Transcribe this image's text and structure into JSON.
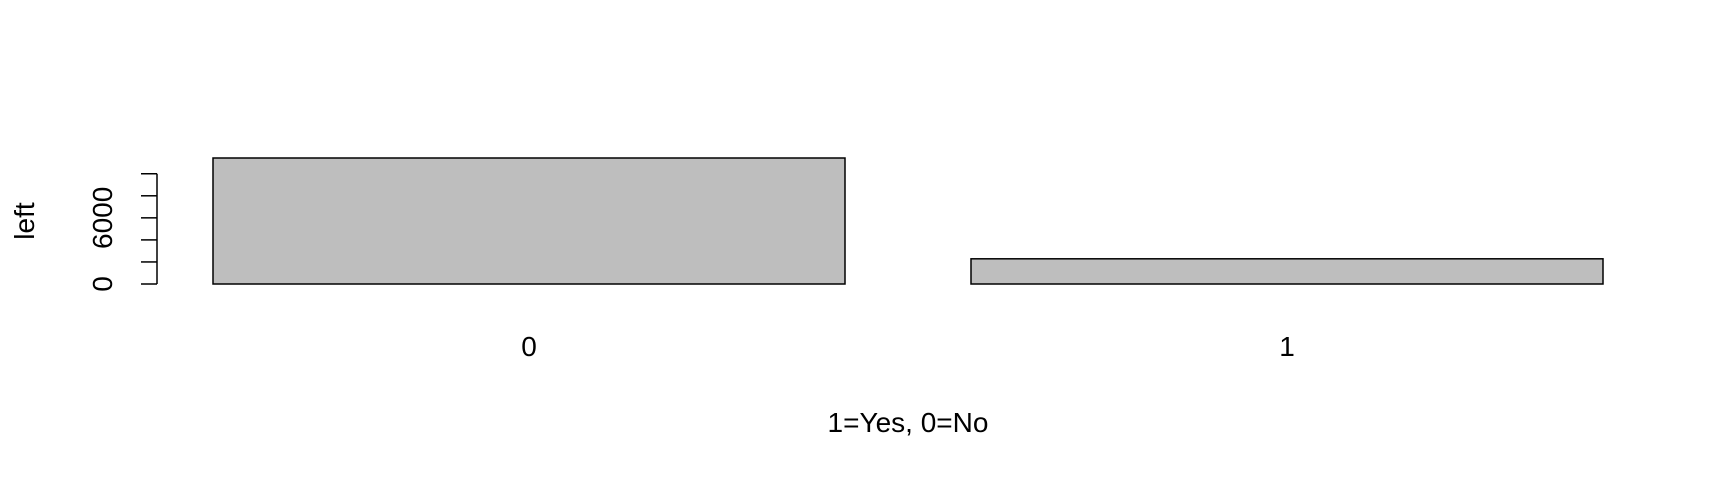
{
  "chart_data": {
    "type": "bar",
    "categories": [
      "0",
      "1"
    ],
    "values": [
      11428,
      2285
    ],
    "xlabel": "1=Yes, 0=No",
    "ylabel": "left",
    "yticks": [
      0,
      2000,
      4000,
      6000,
      8000,
      10000
    ],
    "ytick_labels_shown": [
      "0",
      "6000"
    ],
    "ylim": [
      0,
      11428
    ],
    "grid": false,
    "legend": "none",
    "colors": {
      "bar_fill": "#bebebe",
      "bar_stroke": "#000000",
      "axis": "#000000"
    }
  }
}
